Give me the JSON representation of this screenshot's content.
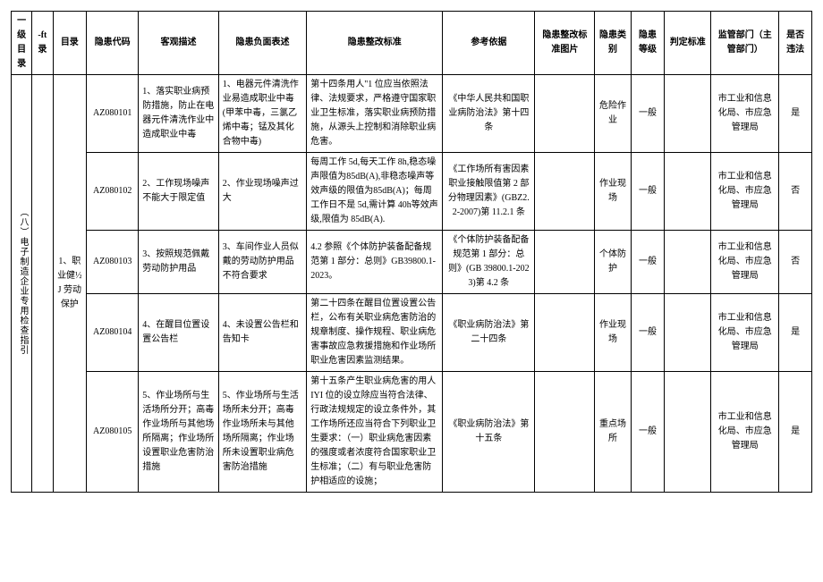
{
  "headers": {
    "c1": "一级目录",
    "c2": "-ft录",
    "c3": "隐患代码",
    "c4": "客观描述",
    "c5": "隐患负面表述",
    "c6": "隐患整改标准",
    "c7": "参考依据",
    "c8": "隐患整改标准图片",
    "c9": "隐患类别",
    "c10": "隐患等级",
    "c11": "判定标准",
    "c12": "监管部门（主管部门）",
    "c13": "是否违法"
  },
  "level1": "（八）电子制造企业专用检查指引",
  "level2": "目录",
  "level3": "1、职业健½J 劳动保护",
  "rows": [
    {
      "code": "AZ080101",
      "desc": "1、落实职业病预防措施，防止在电器元件清洗作业中造成职业中毒",
      "neg": "1、电器元件清洗作业易造成职业中毒(甲苯中毒，三氯乙烯中毒；锰及其化合物中毒)",
      "std": "第十四条用人\"1 位应当依照法律、法规要求，严格遵守国家职业卫生标准，落实职业病预防措施，从源头上控制和消除职业病危害。",
      "ref": "《中华人民共和国职业病防治法》第十四条",
      "img": "",
      "cat": "危险作业",
      "lvl": "一般",
      "judge": "",
      "dept": "市工业和信息化局、市应急管理局",
      "law": "是"
    },
    {
      "code": "AZ080102",
      "desc": "2、工作现场噪声不能大于限定值",
      "neg": "2、作业现场噪声过大",
      "std": "每周工作 5d,每天工作 8h,稳态噪声限值为85dB(A),非稳态噪声等效声级的限值为85dB(A)；每周工作日不是 5d,需计算 40h等效声级,限值为 85dB(A).",
      "ref": "《工作场所有害因素职业接触限值第 2 部分物理因素》(GBZ2.2-2007)第 11.2.1 条",
      "img": "",
      "cat": "作业现场",
      "lvl": "一般",
      "judge": "",
      "dept": "市工业和信息化局、市应急管理局",
      "law": "否"
    },
    {
      "code": "AZ080103",
      "desc": "3、按照规范佩戴劳动防护用品",
      "neg": "3、车间作业人员似戴的劳动防护用品不符合要求",
      "std": "4.2 参照《个体防护装备配备规范第 1 部分：总则》GB39800.1-2023。",
      "ref": "《个体防护装备配备规范第 1 部分：总则》(GB 39800.1-2023)第 4.2 条",
      "img": "",
      "cat": "个体防护",
      "lvl": "一般",
      "judge": "",
      "dept": "市工业和信息化局、市应急管理局",
      "law": "否"
    },
    {
      "code": "AZ080104",
      "desc": "4、在醒目位置设置公告栏",
      "neg": "4、未设置公告栏和告知卡",
      "std": "第二十四条在醒目位置设置公告栏，公布有关职业病危害防治的规章制度、操作规程、职业病危害事故应急救援措施和作业场所职业危害因素监测结果。",
      "ref": "《职业病防治法》第二十四条",
      "img": "",
      "cat": "作业现场",
      "lvl": "一般",
      "judge": "",
      "dept": "市工业和信息化局、市应急管理局",
      "law": "是"
    },
    {
      "code": "AZ080105",
      "desc": "5、作业场所与生活场所分开；高毒作业场所与其他场所隔离；作业场所设置职业危害防治措施",
      "neg": "5、作业场所与生活场所未分开；高毒作业场所未与其他场所隔离；作业场所未设置职业病危害防治措施",
      "std": "第十五条产生职业病危害的用人 IYI 位的设立除应当符合法律、行政法规规定的设立条件外，其工作场所还应当符合下列职业卫生要求：（一）职业病危害因素的强度或者浓度符合国家职业卫生标准；（二）有与职业危害防护相适应的设施；",
      "ref": "《职业病防治法》第十五条",
      "img": "",
      "cat": "重点场所",
      "lvl": "一般",
      "judge": "",
      "dept": "市工业和信息化局、市应急管理局",
      "law": "是"
    }
  ],
  "style": {
    "border_color": "#000000",
    "background_color": "#ffffff",
    "font_size": 10,
    "header_weight": "normal"
  }
}
